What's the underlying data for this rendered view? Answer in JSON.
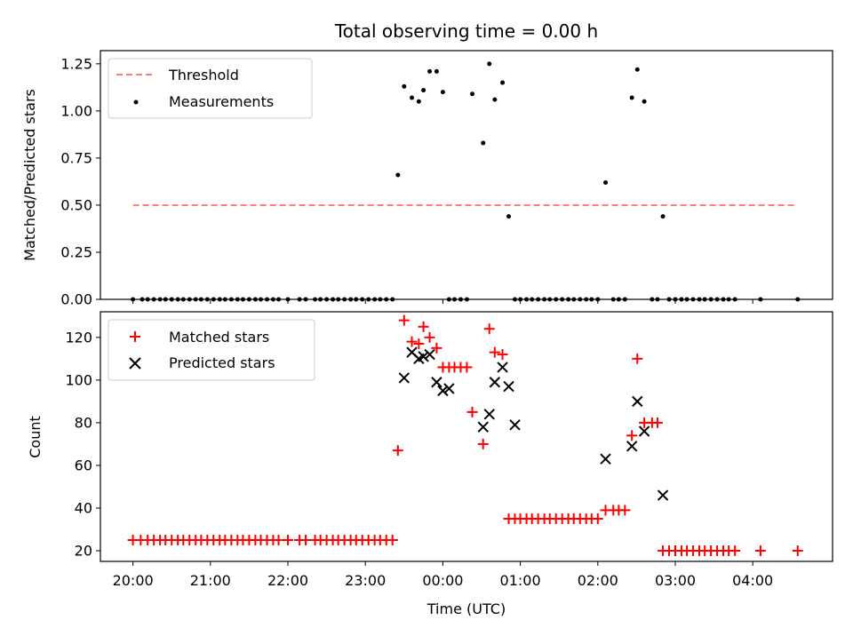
{
  "figure": {
    "title": "Total observing time = 0.00 h",
    "xlabel": "Time (UTC)",
    "xtick_labels": [
      "20:00",
      "21:00",
      "22:00",
      "23:00",
      "00:00",
      "01:00",
      "02:00",
      "03:00",
      "04:00"
    ]
  },
  "chart_data": [
    {
      "type": "scatter",
      "ylabel": "Matched/Predicted stars",
      "xlim": [
        19.58,
        29.03
      ],
      "ylim": [
        0,
        1.32
      ],
      "yticks": [
        "0.00",
        "0.25",
        "0.50",
        "0.75",
        "1.00",
        "1.25"
      ],
      "ytick_values": [
        0,
        0.25,
        0.5,
        0.75,
        1.0,
        1.25
      ],
      "legend": {
        "position": "upper left",
        "entries": [
          "Threshold",
          "Measurements"
        ]
      },
      "threshold": {
        "name": "Threshold",
        "value": 0.5,
        "x_range": [
          20.0,
          28.58
        ],
        "color": "#ff7f7f"
      },
      "series": [
        {
          "name": "Measurements",
          "color": "#000000",
          "x": [
            20.0,
            20.12,
            20.19,
            20.27,
            20.35,
            20.42,
            20.5,
            20.58,
            20.65,
            20.73,
            20.81,
            20.88,
            20.96,
            21.04,
            21.12,
            21.19,
            21.27,
            21.35,
            21.42,
            21.5,
            21.58,
            21.65,
            21.73,
            21.81,
            21.88,
            22.0,
            22.15,
            22.23,
            22.35,
            22.42,
            22.5,
            22.58,
            22.65,
            22.73,
            22.81,
            22.88,
            22.96,
            23.04,
            23.12,
            23.19,
            23.27,
            23.35,
            23.42,
            23.5,
            23.6,
            23.69,
            23.75,
            23.83,
            23.92,
            24.0,
            24.08,
            24.15,
            24.23,
            24.31,
            24.38,
            24.52,
            24.6,
            24.67,
            24.77,
            24.85,
            24.93,
            25.0,
            25.08,
            25.15,
            25.23,
            25.31,
            25.38,
            25.46,
            25.54,
            25.62,
            25.69,
            25.77,
            25.85,
            25.92,
            26.0,
            26.1,
            26.2,
            26.27,
            26.35,
            26.44,
            26.51,
            26.6,
            26.7,
            26.77,
            26.84,
            26.92,
            27.0,
            27.08,
            27.15,
            27.23,
            27.31,
            27.38,
            27.46,
            27.54,
            27.62,
            27.69,
            27.77,
            28.1,
            28.58
          ],
          "y": [
            0,
            0,
            0,
            0,
            0,
            0,
            0,
            0,
            0,
            0,
            0,
            0,
            0,
            0,
            0,
            0,
            0,
            0,
            0,
            0,
            0,
            0,
            0,
            0,
            0,
            0,
            0,
            0,
            0,
            0,
            0,
            0,
            0,
            0,
            0,
            0,
            0,
            0,
            0,
            0,
            0,
            0,
            0.66,
            1.13,
            1.07,
            1.05,
            1.11,
            1.21,
            1.21,
            1.1,
            0,
            0,
            0,
            0,
            1.09,
            0.83,
            1.25,
            1.06,
            1.15,
            0.44,
            0,
            0,
            0,
            0,
            0,
            0,
            0,
            0,
            0,
            0,
            0,
            0,
            0,
            0,
            0,
            0.62,
            0,
            0,
            0,
            1.07,
            1.22,
            1.05,
            0,
            0,
            0.44,
            0,
            0,
            0,
            0,
            0,
            0,
            0,
            0,
            0,
            0,
            0,
            0,
            0,
            0
          ]
        }
      ]
    },
    {
      "type": "scatter",
      "ylabel": "Count",
      "xlim": [
        19.58,
        29.03
      ],
      "ylim": [
        15,
        132
      ],
      "yticks": [
        "20",
        "40",
        "60",
        "80",
        "100",
        "120"
      ],
      "ytick_values": [
        20,
        40,
        60,
        80,
        100,
        120
      ],
      "legend": {
        "position": "upper left",
        "entries": [
          "Matched stars",
          "Predicted stars"
        ]
      },
      "series": [
        {
          "name": "Matched stars",
          "marker": "plus",
          "color": "#ff0000",
          "x": [
            20.0,
            20.1,
            20.19,
            20.27,
            20.35,
            20.42,
            20.5,
            20.58,
            20.65,
            20.73,
            20.81,
            20.88,
            20.96,
            21.04,
            21.12,
            21.19,
            21.27,
            21.35,
            21.42,
            21.5,
            21.58,
            21.65,
            21.73,
            21.81,
            21.88,
            22.0,
            22.15,
            22.23,
            22.35,
            22.42,
            22.5,
            22.58,
            22.65,
            22.73,
            22.81,
            22.88,
            22.96,
            23.04,
            23.12,
            23.19,
            23.27,
            23.35,
            23.42,
            23.5,
            23.6,
            23.69,
            23.75,
            23.83,
            23.92,
            24.0,
            24.08,
            24.15,
            24.23,
            24.31,
            24.38,
            24.52,
            24.6,
            24.67,
            24.77,
            24.85,
            24.93,
            25.0,
            25.08,
            25.15,
            25.23,
            25.31,
            25.38,
            25.46,
            25.54,
            25.62,
            25.69,
            25.77,
            25.85,
            25.92,
            26.0,
            26.1,
            26.2,
            26.27,
            26.35,
            26.44,
            26.51,
            26.6,
            26.7,
            26.77,
            26.84,
            26.92,
            27.0,
            27.08,
            27.15,
            27.23,
            27.31,
            27.38,
            27.46,
            27.54,
            27.62,
            27.69,
            27.77,
            28.1,
            28.58
          ],
          "y": [
            25,
            25,
            25,
            25,
            25,
            25,
            25,
            25,
            25,
            25,
            25,
            25,
            25,
            25,
            25,
            25,
            25,
            25,
            25,
            25,
            25,
            25,
            25,
            25,
            25,
            25,
            25,
            25,
            25,
            25,
            25,
            25,
            25,
            25,
            25,
            25,
            25,
            25,
            25,
            25,
            25,
            25,
            67,
            128,
            118,
            117,
            125,
            120,
            115,
            106,
            106,
            106,
            106,
            106,
            85,
            70,
            124,
            113,
            112,
            35,
            35,
            35,
            35,
            35,
            35,
            35,
            35,
            35,
            35,
            35,
            35,
            35,
            35,
            35,
            35,
            39,
            39,
            39,
            39,
            74,
            110,
            80,
            80,
            80,
            20,
            20,
            20,
            20,
            20,
            20,
            20,
            20,
            20,
            20,
            20,
            20,
            20,
            20,
            20
          ]
        },
        {
          "name": "Predicted stars",
          "marker": "x",
          "color": "#000000",
          "x": [
            23.5,
            23.6,
            23.69,
            23.75,
            23.83,
            23.92,
            24.0,
            24.08,
            24.52,
            24.6,
            24.67,
            24.77,
            24.85,
            24.93,
            26.1,
            26.44,
            26.51,
            26.6,
            26.84
          ],
          "y": [
            101,
            113,
            110,
            111,
            112,
            99,
            95,
            96,
            78,
            84,
            99,
            106,
            97,
            79,
            63,
            69,
            90,
            76,
            46
          ]
        }
      ]
    }
  ]
}
